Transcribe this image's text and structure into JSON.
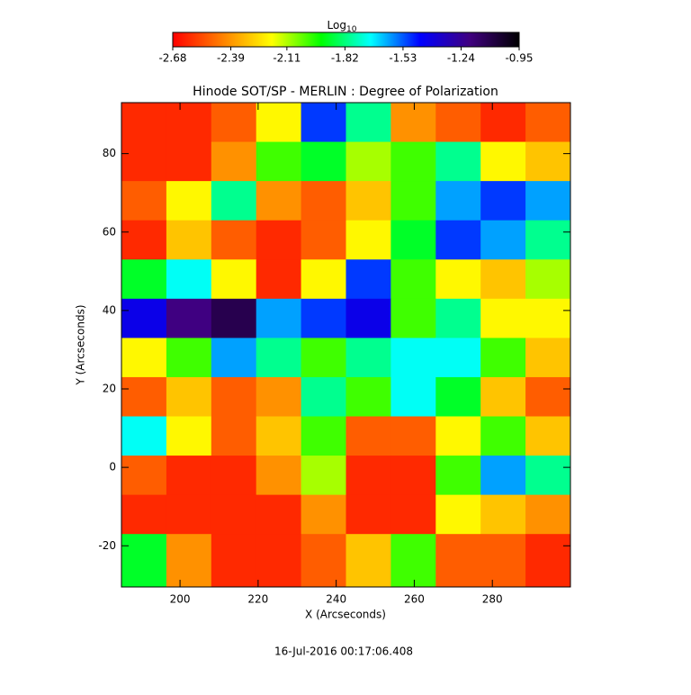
{
  "chart_data": {
    "type": "heatmap",
    "title": "Hinode SOT/SP - MERLIN : Degree of Polarization",
    "x_label": "X (Arcseconds)",
    "y_label": "Y (Arcseconds)",
    "footer": "16-Jul-2016 00:17:06.408",
    "colorbar": {
      "label": "Log",
      "label_sub": "10",
      "lim": [
        -2.68,
        -0.95
      ],
      "ticks": [
        -2.68,
        -2.39,
        -2.11,
        -1.82,
        -1.53,
        -1.24,
        -0.95
      ]
    },
    "colormap": [
      "#ff0000",
      "#ff8000",
      "#ffff00",
      "#00ff00",
      "#00ffff",
      "#0000ff",
      "#400080",
      "#000000"
    ],
    "xlim": [
      185,
      300
    ],
    "ylim": [
      -30.5,
      93
    ],
    "xticks": [
      200,
      220,
      240,
      260,
      280
    ],
    "yticks": [
      -20,
      0,
      20,
      40,
      60,
      80
    ],
    "x_edges": [
      185,
      196.5,
      208,
      219.5,
      231,
      242.5,
      254,
      265.5,
      277,
      288.5,
      300
    ],
    "y_edges": [
      93,
      83,
      73,
      63,
      53,
      43,
      33,
      23,
      13,
      3,
      -7,
      -17,
      -30.5
    ],
    "z": [
      [
        -2.6,
        -2.6,
        -2.5,
        -2.2,
        -1.5,
        -1.8,
        -2.4,
        -2.5,
        -2.6,
        -2.5
      ],
      [
        -2.6,
        -2.6,
        -2.4,
        -2.0,
        -1.9,
        -2.1,
        -2.0,
        -1.8,
        -2.2,
        -2.3
      ],
      [
        -2.5,
        -2.2,
        -1.8,
        -2.4,
        -2.5,
        -2.3,
        -2.0,
        -1.6,
        -1.5,
        -1.6
      ],
      [
        -2.6,
        -2.3,
        -2.5,
        -2.6,
        -2.5,
        -2.2,
        -1.9,
        -1.5,
        -1.6,
        -1.8
      ],
      [
        -1.9,
        -1.7,
        -2.2,
        -2.6,
        -2.2,
        -1.5,
        -2.0,
        -2.2,
        -2.3,
        -2.1
      ],
      [
        -1.4,
        -1.2,
        -1.1,
        -1.6,
        -1.5,
        -1.4,
        -2.0,
        -1.8,
        -2.2,
        -2.2
      ],
      [
        -2.2,
        -2.0,
        -1.6,
        -1.8,
        -2.0,
        -1.8,
        -1.7,
        -1.7,
        -2.0,
        -2.3
      ],
      [
        -2.5,
        -2.3,
        -2.5,
        -2.4,
        -1.8,
        -2.0,
        -1.7,
        -1.9,
        -2.3,
        -2.5
      ],
      [
        -1.7,
        -2.2,
        -2.5,
        -2.3,
        -2.0,
        -2.5,
        -2.5,
        -2.2,
        -2.0,
        -2.3
      ],
      [
        -2.5,
        -2.6,
        -2.6,
        -2.4,
        -2.1,
        -2.6,
        -2.6,
        -2.0,
        -1.6,
        -1.8
      ],
      [
        -2.6,
        -2.6,
        -2.6,
        -2.6,
        -2.4,
        -2.6,
        -2.6,
        -2.2,
        -2.3,
        -2.4
      ],
      [
        -1.9,
        -2.4,
        -2.6,
        -2.6,
        -2.5,
        -2.3,
        -2.0,
        -2.5,
        -2.5,
        -2.6
      ]
    ]
  }
}
